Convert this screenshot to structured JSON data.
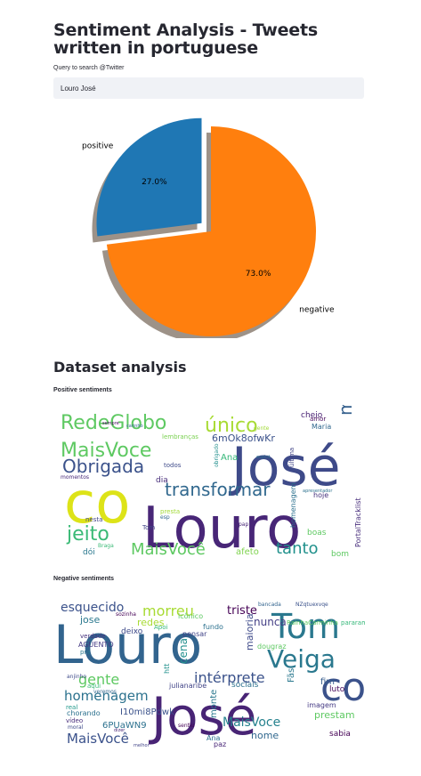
{
  "page": {
    "title": "Sentiment Analysis - Tweets written in portuguese",
    "search_label": "Query to search @Twitter",
    "search_value": "Louro José",
    "dataset_heading": "Dataset analysis",
    "positive_heading": "Positive sentiments",
    "negative_heading": "Negative sentiments"
  },
  "chart_data": {
    "type": "pie",
    "labels": [
      "positive",
      "negative"
    ],
    "values": [
      27.0,
      73.0
    ],
    "value_labels": [
      "27.0%",
      "73.0%"
    ],
    "colors": [
      "#1f77b4",
      "#ff7f0e"
    ],
    "explode": "positive",
    "shadow": true
  },
  "wordcloud_positive": {
    "words": [
      "José",
      "Louro",
      "co",
      "transformar",
      "RedeGlobo",
      "MaisVoce",
      "Obrigada",
      "único",
      "manhãs",
      "jeito",
      "MaisVocê",
      "tanto",
      "6mOk8ofwKr",
      "cheio",
      "lembranças",
      "hoje",
      "boas",
      "afeto",
      "bom",
      "dia",
      "todos",
      "Ana",
      "Tom",
      "dói",
      "nesta",
      "PortalTracklist",
      "Maria",
      "amor",
      "presta",
      "momentos",
      "homenagem",
      "última",
      "sempre",
      "Braga",
      "esp",
      "pap",
      "carinho",
      "obrigado",
      "gente",
      "apresentador",
      "espirit"
    ]
  },
  "wordcloud_negative": {
    "words": [
      "Louro",
      "José",
      "co",
      "Tom",
      "Veiga",
      "morreu",
      "esquecido",
      "gente",
      "intérprete",
      "homenagem",
      "MaisVocê",
      "MaisVoce",
      "triste",
      "nunca",
      "jose",
      "redes",
      "prestam",
      "nome",
      "6PUaWN9",
      "I10mi8Pdwk",
      "sociais",
      "sabia",
      "fim",
      "luto",
      "imagem",
      "monte",
      "cena",
      "maioria",
      "Fãs",
      "dougraz",
      "chorando",
      "aqui",
      "julianaribe",
      "AGUENTO",
      "verdade",
      "real",
      "vídeo",
      "moral",
      "fundo",
      "pensar",
      "icônico",
      "bancada",
      "NZqtuexvqe",
      "pararam",
      "RainhaCarminha",
      "sozinha",
      "deixo",
      "htt",
      "anjinho",
      "pra",
      "veremos",
      "sentiu",
      "Apoi",
      "Ana",
      "paz",
      "dizer",
      "melhor"
    ]
  }
}
